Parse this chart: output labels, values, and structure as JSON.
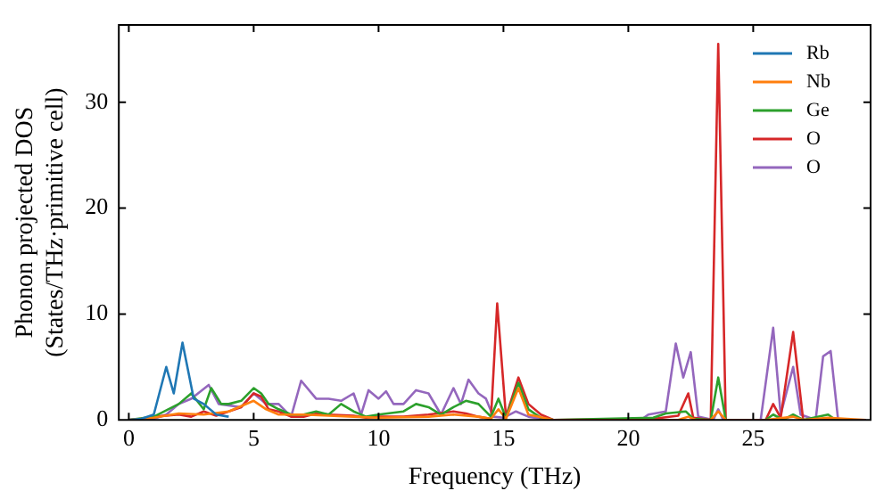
{
  "chart_data": {
    "type": "line",
    "xlabel": "Frequency (THz)",
    "ylabel": "Phonon projected DOS\n(States/THz·primitive cell)",
    "xlim": [
      -0.4,
      29.7
    ],
    "ylim": [
      0,
      37.3
    ],
    "xticks": [
      0,
      5,
      10,
      15,
      20,
      25
    ],
    "yticks": [
      0,
      10,
      20,
      30
    ],
    "grid": false,
    "legend": "top right",
    "marker": "none",
    "line_style": "solid",
    "series": [
      {
        "name": "Rb",
        "color": "#1f77b4",
        "x": [
          0,
          0.5,
          1,
          1.5,
          1.8,
          2.15,
          2.6,
          3,
          3.5,
          4
        ],
        "values": [
          0,
          0.1,
          0.5,
          5,
          2.5,
          7.3,
          2,
          1.5,
          0.5,
          0.3
        ]
      },
      {
        "name": "Nb",
        "color": "#ff7f0e",
        "x": [
          0,
          1,
          2,
          3,
          4,
          5,
          5.5,
          6,
          7,
          8,
          9,
          10,
          12,
          13,
          14,
          14.5,
          14.8,
          15.1,
          15.6,
          16,
          17,
          22,
          22.4,
          22.7,
          23.3,
          23.6,
          23.9,
          25.5,
          26.6,
          27,
          28,
          29.5
        ],
        "values": [
          0,
          0.2,
          0.6,
          0.5,
          0.8,
          1.8,
          1,
          0.5,
          0.5,
          0.4,
          0.3,
          0.2,
          0.3,
          0.5,
          0.3,
          0.1,
          1,
          0.1,
          3,
          0.5,
          0,
          0,
          0.3,
          0,
          0,
          0.8,
          0,
          0,
          0.3,
          0,
          0.2,
          0
        ]
      },
      {
        "name": "Ge",
        "color": "#2ca02c",
        "x": [
          0,
          1,
          2,
          2.5,
          3,
          3.3,
          3.7,
          4,
          4.5,
          5,
          5.3,
          5.6,
          6,
          6.5,
          7,
          7.5,
          8,
          8.5,
          9,
          9.5,
          10,
          11,
          11.5,
          12,
          12.5,
          13,
          13.5,
          14,
          14.5,
          14.8,
          15.1,
          15.6,
          16,
          16.5,
          17,
          21,
          21.5,
          22.3,
          22.6,
          23.3,
          23.6,
          23.9,
          25.5,
          25.8,
          26.2,
          26.6,
          27,
          28,
          28.3,
          29.5
        ],
        "values": [
          0,
          0.3,
          1.5,
          2.5,
          1,
          3,
          1.5,
          1.5,
          1.8,
          3,
          2.5,
          1.5,
          1,
          0.5,
          0.5,
          0.8,
          0.5,
          1.5,
          0.8,
          0.3,
          0.5,
          0.8,
          1.5,
          1.2,
          0.5,
          1.2,
          1.8,
          1.5,
          0.3,
          2,
          0.2,
          3.5,
          1,
          0.2,
          0,
          0.2,
          0.6,
          0.8,
          0.1,
          0,
          4,
          0,
          0,
          0.5,
          0,
          0.5,
          0,
          0.5,
          0,
          0
        ]
      },
      {
        "name": "O",
        "color": "#d62728",
        "x": [
          0,
          0.5,
          1,
          2,
          2.5,
          3,
          3.5,
          4,
          4.5,
          5,
          5.3,
          5.6,
          6,
          6.5,
          7,
          7.5,
          8,
          9,
          9.5,
          10,
          11,
          12,
          13,
          13.5,
          14,
          14.5,
          14.75,
          15.1,
          15.6,
          16,
          16.5,
          17,
          21,
          22,
          22.4,
          22.6,
          23.3,
          23.6,
          23.9,
          25.5,
          25.8,
          26.1,
          26.6,
          27,
          28,
          29.5
        ],
        "values": [
          0,
          0.1,
          0.3,
          0.5,
          0.3,
          0.8,
          0.4,
          0.8,
          1.2,
          2.5,
          2.2,
          1,
          0.8,
          0.3,
          0.3,
          0.6,
          0.5,
          0.4,
          0.2,
          0.3,
          0.3,
          0.5,
          0.8,
          0.6,
          0.3,
          0.1,
          11,
          0.3,
          4,
          1.5,
          0.5,
          0,
          0.1,
          0.4,
          2.5,
          0.2,
          0,
          35.5,
          0,
          0,
          1.5,
          0.2,
          8.3,
          0,
          0,
          0
        ]
      },
      {
        "name": "O",
        "color": "#9467bd",
        "x": [
          0,
          1,
          1.5,
          2,
          2.5,
          3.2,
          3.6,
          4.5,
          5,
          5.5,
          6,
          6.5,
          6.9,
          7.5,
          8,
          8.5,
          9,
          9.3,
          9.6,
          10,
          10.3,
          10.6,
          11,
          11.5,
          12,
          12.5,
          13,
          13.3,
          13.6,
          14,
          14.3,
          14.6,
          15,
          15.5,
          16,
          16.5,
          17,
          20.5,
          20.8,
          21.5,
          21.9,
          22.2,
          22.5,
          22.8,
          23.4,
          23.6,
          23.8,
          25.3,
          25.8,
          26.1,
          26.6,
          26.9,
          27.5,
          27.8,
          28.1,
          28.4,
          29.5
        ],
        "values": [
          0,
          0.1,
          0.5,
          1.5,
          2,
          3.3,
          1.5,
          1.2,
          2.5,
          1.5,
          1.5,
          0.3,
          3.7,
          2,
          2,
          1.8,
          2.5,
          0.5,
          2.8,
          2,
          2.7,
          1.5,
          1.5,
          2.8,
          2.5,
          0.5,
          3,
          1.5,
          3.8,
          2.5,
          2,
          0.3,
          0.2,
          0.8,
          0.3,
          0.1,
          0,
          0,
          0.5,
          0.8,
          7.2,
          4,
          6.4,
          0.3,
          0,
          1,
          0,
          0,
          8.7,
          0.5,
          5,
          0.5,
          0,
          6,
          6.5,
          0,
          0
        ]
      }
    ]
  }
}
